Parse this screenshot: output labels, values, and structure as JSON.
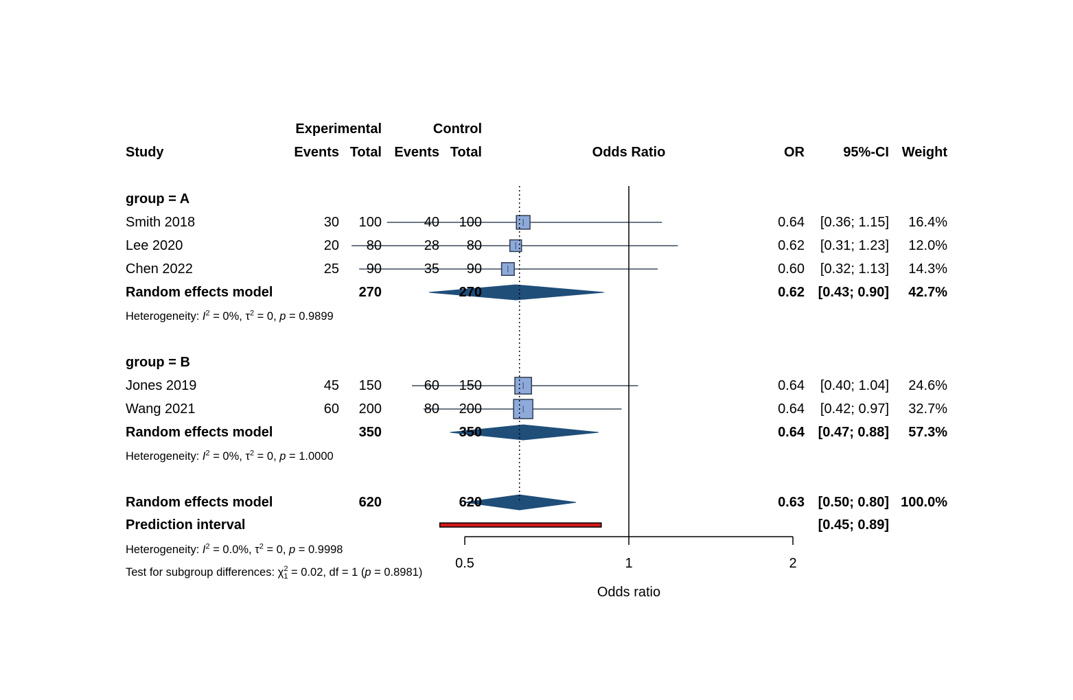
{
  "chart_data": {
    "type": "forest",
    "headers": {
      "experimental": "Experimental",
      "control": "Control",
      "study": "Study",
      "events": "Events",
      "total": "Total",
      "odds_ratio": "Odds Ratio",
      "or": "OR",
      "ci": "95%-CI",
      "weight": "Weight"
    },
    "groups": [
      {
        "label": "group = A",
        "studies": [
          {
            "name": "Smith 2018",
            "exp_events": "30",
            "exp_total": "100",
            "ctl_events": "40",
            "ctl_total": "100",
            "or": 0.64,
            "lo": 0.36,
            "hi": 1.15,
            "or_text": "0.64",
            "ci_text": "[0.36; 1.15]",
            "weight": 16.4,
            "weight_text": "16.4%"
          },
          {
            "name": "Lee 2020",
            "exp_events": "20",
            "exp_total": "80",
            "ctl_events": "28",
            "ctl_total": "80",
            "or": 0.62,
            "lo": 0.31,
            "hi": 1.23,
            "or_text": "0.62",
            "ci_text": "[0.31; 1.23]",
            "weight": 12.0,
            "weight_text": "12.0%"
          },
          {
            "name": "Chen 2022",
            "exp_events": "25",
            "exp_total": "90",
            "ctl_events": "35",
            "ctl_total": "90",
            "or": 0.6,
            "lo": 0.32,
            "hi": 1.13,
            "or_text": "0.60",
            "ci_text": "[0.32; 1.13]",
            "weight": 14.3,
            "weight_text": "14.3%"
          }
        ],
        "model": {
          "name": "Random effects model",
          "exp_total": "270",
          "ctl_total": "270",
          "or": 0.62,
          "lo": 0.43,
          "hi": 0.9,
          "or_text": "0.62",
          "ci_text": "[0.43; 0.90]",
          "weight_text": "42.7%"
        },
        "heterogeneity": {
          "prefix": "Heterogeneity: ",
          "i2": "= 0%, ",
          "tau2": "= 0, ",
          "p": "= 0.9899"
        }
      },
      {
        "label": "group = B",
        "studies": [
          {
            "name": "Jones 2019",
            "exp_events": "45",
            "exp_total": "150",
            "ctl_events": "60",
            "ctl_total": "150",
            "or": 0.64,
            "lo": 0.4,
            "hi": 1.04,
            "or_text": "0.64",
            "ci_text": "[0.40; 1.04]",
            "weight": 24.6,
            "weight_text": "24.6%"
          },
          {
            "name": "Wang 2021",
            "exp_events": "60",
            "exp_total": "200",
            "ctl_events": "80",
            "ctl_total": "200",
            "or": 0.64,
            "lo": 0.42,
            "hi": 0.97,
            "or_text": "0.64",
            "ci_text": "[0.42; 0.97]",
            "weight": 32.7,
            "weight_text": "32.7%"
          }
        ],
        "model": {
          "name": "Random effects model",
          "exp_total": "350",
          "ctl_total": "350",
          "or": 0.64,
          "lo": 0.47,
          "hi": 0.88,
          "or_text": "0.64",
          "ci_text": "[0.47; 0.88]",
          "weight_text": "57.3%"
        },
        "heterogeneity": {
          "prefix": "Heterogeneity: ",
          "i2": "= 0%, ",
          "tau2": "= 0, ",
          "p": "= 1.0000"
        }
      }
    ],
    "overall": {
      "name": "Random effects model",
      "exp_total": "620",
      "ctl_total": "620",
      "or": 0.63,
      "lo": 0.5,
      "hi": 0.8,
      "or_text": "0.63",
      "ci_text": "[0.50; 0.80]",
      "weight_text": "100.0%"
    },
    "prediction": {
      "name": "Prediction interval",
      "lo": 0.45,
      "hi": 0.89,
      "ci_text": "[0.45; 0.89]"
    },
    "overall_heterogeneity": {
      "prefix": "Heterogeneity: ",
      "i2": "= 0.0%, ",
      "tau2": "= 0, ",
      "p": "= 0.9998"
    },
    "subgroup_test": {
      "prefix": "Test for subgroup differences: ",
      "chi_sup": "2",
      "chi_sub": "1",
      "mid": " = 0.02, df = 1 (",
      "p": " = 0.8981)"
    },
    "x_axis": {
      "label": "Odds ratio",
      "scale": "log",
      "ticks": [
        0.5,
        1,
        2
      ],
      "tick_labels": [
        "0.5",
        "1",
        "2"
      ],
      "range": [
        0.5,
        2
      ]
    },
    "colors": {
      "square": "#8eaadb",
      "square_border": "#2e3c50",
      "diamond": "#1f4e79",
      "ci_line": "#3a4a5c",
      "prediction": "#d11a1a"
    }
  }
}
